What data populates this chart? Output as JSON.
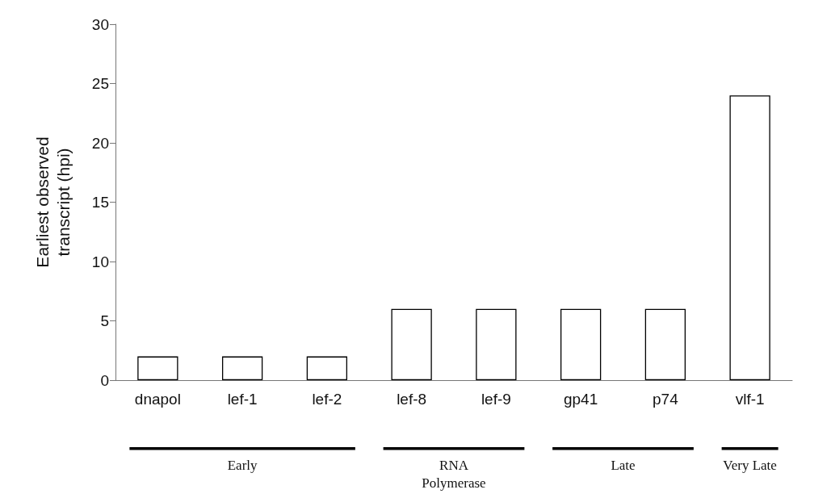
{
  "chart_data": {
    "type": "bar",
    "ylabel": "Earliest observed\ntranscript (hpi)",
    "categories": [
      "dnapol",
      "lef-1",
      "lef-2",
      "lef-8",
      "lef-9",
      "gp41",
      "p74",
      "vlf-1"
    ],
    "values": [
      2,
      2,
      2,
      6,
      6,
      6,
      6,
      24
    ],
    "color": "#ffffff",
    "ylim": [
      0,
      30
    ],
    "yticks": [
      0,
      5,
      10,
      15,
      20,
      25,
      30
    ],
    "grid": false,
    "annotations": [
      "Early",
      "RNA\nPolymerase",
      "Late",
      "Very Late"
    ]
  }
}
